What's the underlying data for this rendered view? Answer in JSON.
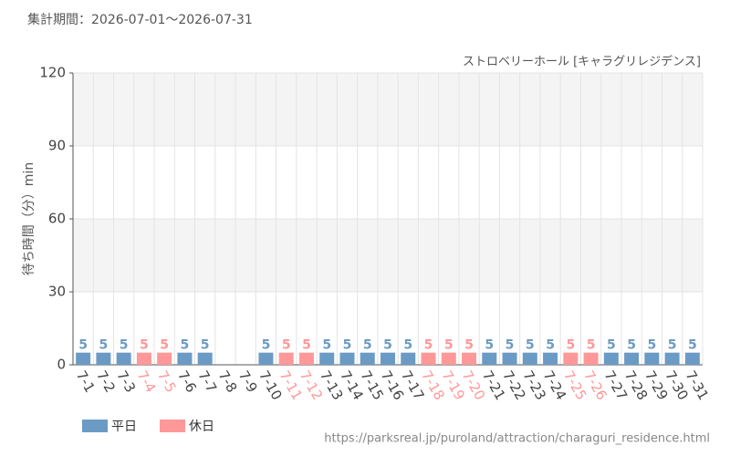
{
  "chart_data": {
    "type": "bar",
    "title": "集計期間：2026-07-01～2026-07-31",
    "subtitle": "ストロベリーホール [キャラグリレジデンス]",
    "y_label": "待ち時間（分）min",
    "source": "https://parksreal.jp/puroland/attraction/charaguri_residence.html",
    "categories": [
      "7-1",
      "7-2",
      "7-3",
      "7-4",
      "7-5",
      "7-6",
      "7-7",
      "7-8",
      "7-9",
      "7-10",
      "7-11",
      "7-12",
      "7-13",
      "7-14",
      "7-15",
      "7-16",
      "7-17",
      "7-18",
      "7-19",
      "7-20",
      "7-21",
      "7-22",
      "7-23",
      "7-24",
      "7-25",
      "7-26",
      "7-27",
      "7-28",
      "7-29",
      "7-30",
      "7-31"
    ],
    "series": [
      {
        "name": "平日",
        "color": "#6b9bc4",
        "values": [
          5,
          5,
          5,
          null,
          null,
          5,
          5,
          null,
          null,
          5,
          null,
          null,
          5,
          5,
          5,
          5,
          5,
          null,
          null,
          null,
          5,
          5,
          5,
          5,
          null,
          null,
          5,
          5,
          5,
          5,
          5
        ]
      },
      {
        "name": "休日",
        "color": "#ff9898",
        "values": [
          null,
          null,
          null,
          5,
          5,
          null,
          null,
          null,
          null,
          null,
          5,
          5,
          null,
          null,
          null,
          null,
          null,
          5,
          5,
          5,
          null,
          null,
          null,
          null,
          5,
          5,
          null,
          null,
          null,
          null,
          null
        ]
      }
    ],
    "ylim": [
      0,
      120
    ],
    "yticks": [
      0,
      30,
      60,
      90,
      120
    ],
    "grid": true
  }
}
